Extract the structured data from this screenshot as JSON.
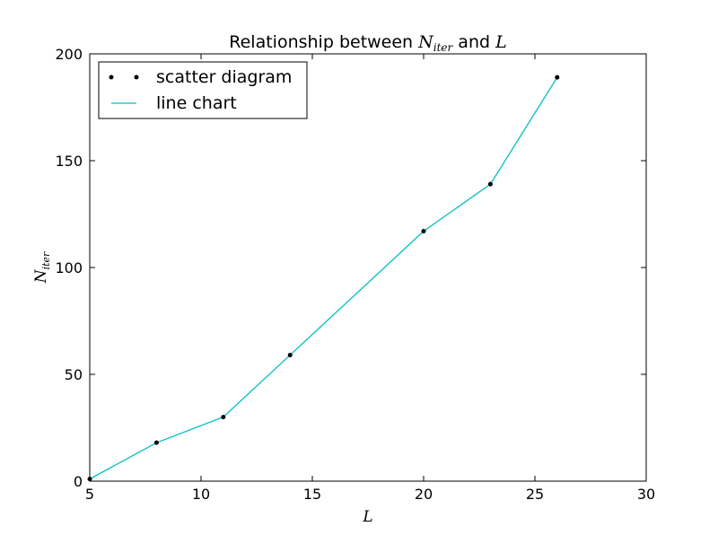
{
  "chart_data": {
    "type": "line",
    "title": {
      "prefix": "Relationship between ",
      "var1_main": "N",
      "var1_sub": "iter",
      "connector": " and ",
      "var2": "L"
    },
    "xlabel": "L",
    "ylabel": {
      "main": "N",
      "sub": "iter"
    },
    "xlim": [
      5,
      30
    ],
    "ylim": [
      0,
      200
    ],
    "x_ticks": [
      5,
      10,
      15,
      20,
      25,
      30
    ],
    "y_ticks": [
      0,
      50,
      100,
      150,
      200
    ],
    "grid": false,
    "legend_position": "upper-left",
    "series": [
      {
        "name": "scatter diagram",
        "kind": "scatter",
        "color": "#000000",
        "x": [
          5,
          8,
          11,
          14,
          20,
          23,
          26
        ],
        "y": [
          1,
          18,
          30,
          59,
          117,
          139,
          189
        ]
      },
      {
        "name": "line chart",
        "kind": "line",
        "color": "#00bfbf",
        "x": [
          5,
          8,
          11,
          14,
          20,
          23,
          26
        ],
        "y": [
          1,
          18,
          30,
          59,
          117,
          139,
          189
        ]
      }
    ]
  }
}
